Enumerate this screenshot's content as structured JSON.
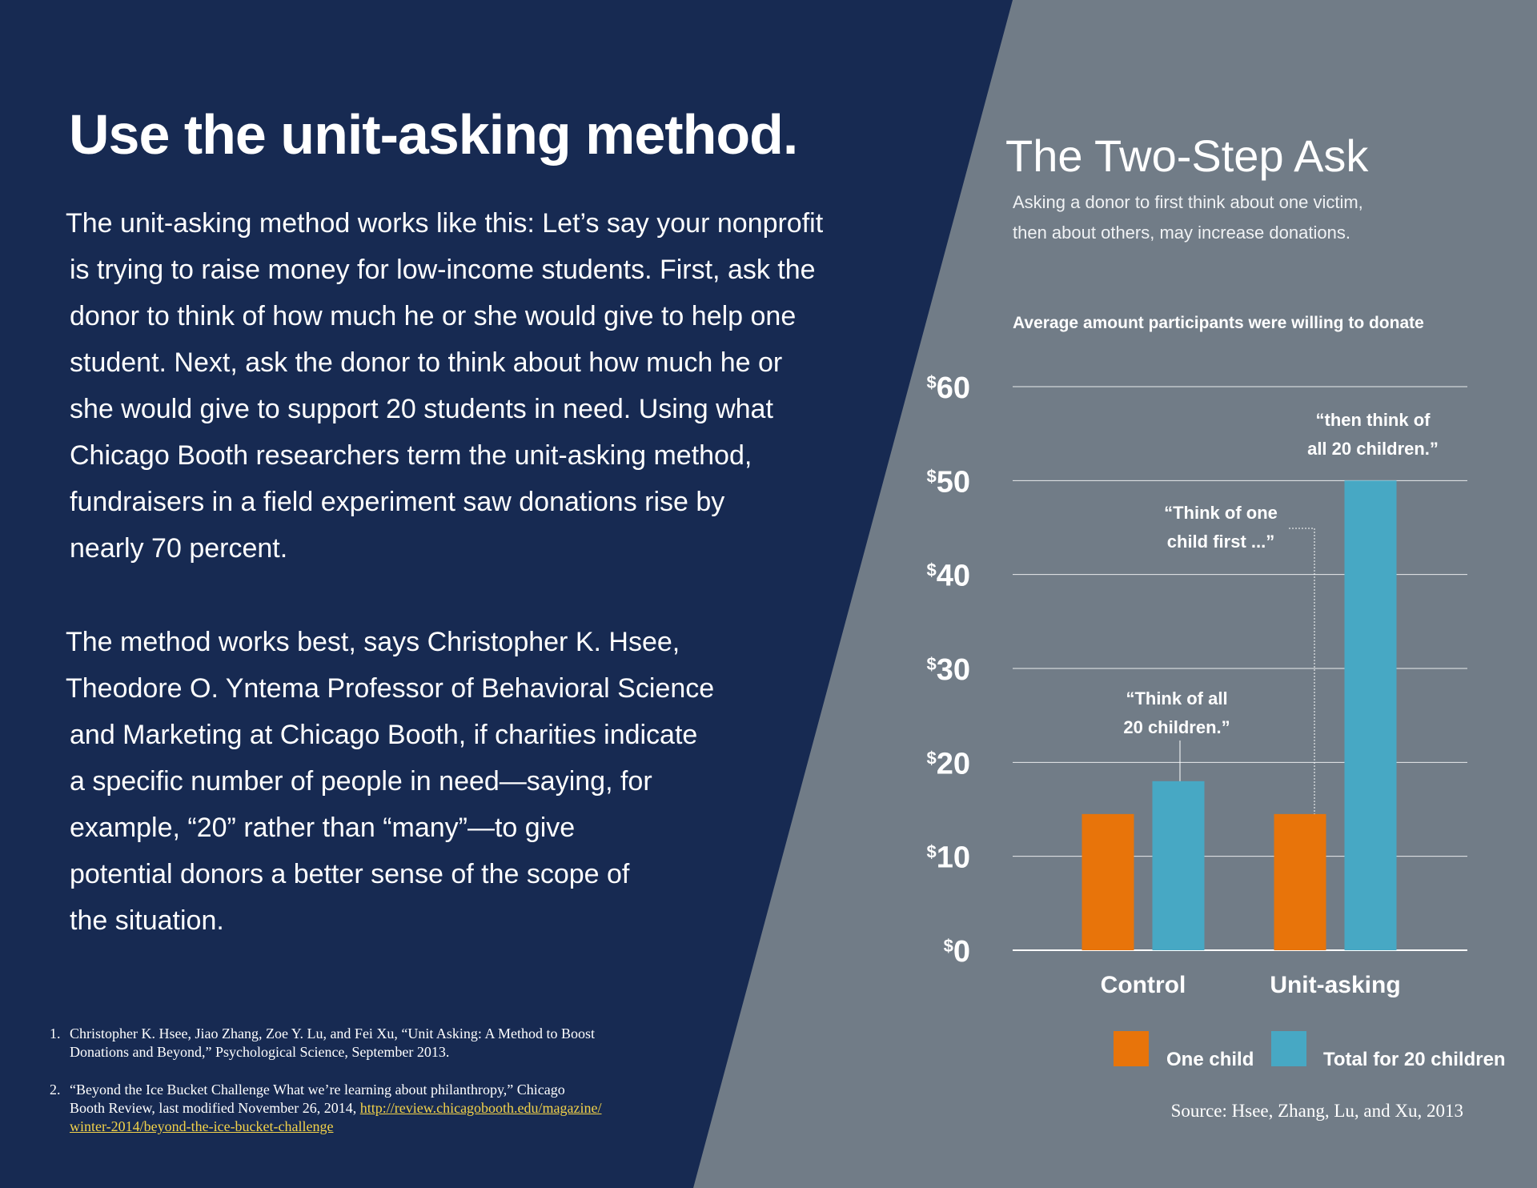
{
  "left": {
    "heading": "Use the unit-asking method.",
    "para1": [
      "The unit-asking method works like this: Let’s say your nonprofit",
      "is trying to raise money for low-income students. First, ask the",
      "donor to think of how much he or she would give to help one",
      "student. Next, ask the donor to think about how much he or",
      "she would give to support 20 students in need. Using what",
      "Chicago Booth researchers term the unit-asking method,",
      "fundraisers in a field experiment saw donations rise by",
      "nearly 70 percent."
    ],
    "para2": [
      "The method works best, says Christopher K. Hsee,",
      "Theodore O. Yntema Professor of Behavioral Science",
      "and Marketing at Chicago Booth, if charities indicate",
      "a specific number of people in need—saying, for",
      "example, “20” rather than “many”—to give",
      "potential donors a better sense of the scope of",
      "the situation."
    ],
    "references": [
      {
        "num": "1.",
        "lines": [
          "Christopher K. Hsee, Jiao Zhang, Zoe Y. Lu, and Fei Xu, “Unit Asking: A Method to Boost",
          "Donations and Beyond,” Psychological Science, September 2013."
        ]
      },
      {
        "num": "2.",
        "lines": [
          "“Beyond the Ice Bucket Challenge What we’re learning about philanthropy,” Chicago",
          "Booth Review, last modified November 26, 2014, "
        ],
        "link_lines": [
          "http://review.chicagobooth.edu/magazine/",
          "winter-2014/beyond-the-ice-bucket-challenge"
        ]
      }
    ]
  },
  "colors": {
    "navy": "#172a52",
    "gray": "#717c87",
    "orange": "#e8740a",
    "blue": "#47a8c4",
    "link": "#f2d24a"
  },
  "chart_data": {
    "type": "bar",
    "title": "The Two-Step Ask",
    "subtitle": [
      "Asking a donor to first think about one victim,",
      "then about others, may increase donations."
    ],
    "ylabel": "Average amount participants were willing to donate",
    "ylim": [
      0,
      60
    ],
    "yticks": [
      {
        "value": 0,
        "label": "0"
      },
      {
        "value": 10,
        "label": "10"
      },
      {
        "value": 20,
        "label": "20"
      },
      {
        "value": 30,
        "label": "30"
      },
      {
        "value": 40,
        "label": "40"
      },
      {
        "value": 50,
        "label": "50"
      },
      {
        "value": 60,
        "label": "60"
      }
    ],
    "ytick_prefix": "$",
    "categories": [
      "Control",
      "Unit-asking"
    ],
    "series": [
      {
        "name": "One child",
        "color": "#e8740a",
        "values": [
          14.5,
          14.5
        ]
      },
      {
        "name": "Total for 20 children",
        "color": "#47a8c4",
        "values": [
          18,
          50
        ]
      }
    ],
    "annotations": [
      {
        "lines": [
          "“Think of all",
          "20 children.”"
        ],
        "series": 1,
        "category": 0
      },
      {
        "lines": [
          "“Think of one",
          "child first ...”"
        ],
        "series": 0,
        "category": 1
      },
      {
        "lines": [
          "“then think of",
          "all 20 children.”"
        ],
        "series": 1,
        "category": 1
      }
    ],
    "legend_position": "bottom",
    "grid": true,
    "source": "Source: Hsee, Zhang, Lu, and Xu, 2013"
  }
}
